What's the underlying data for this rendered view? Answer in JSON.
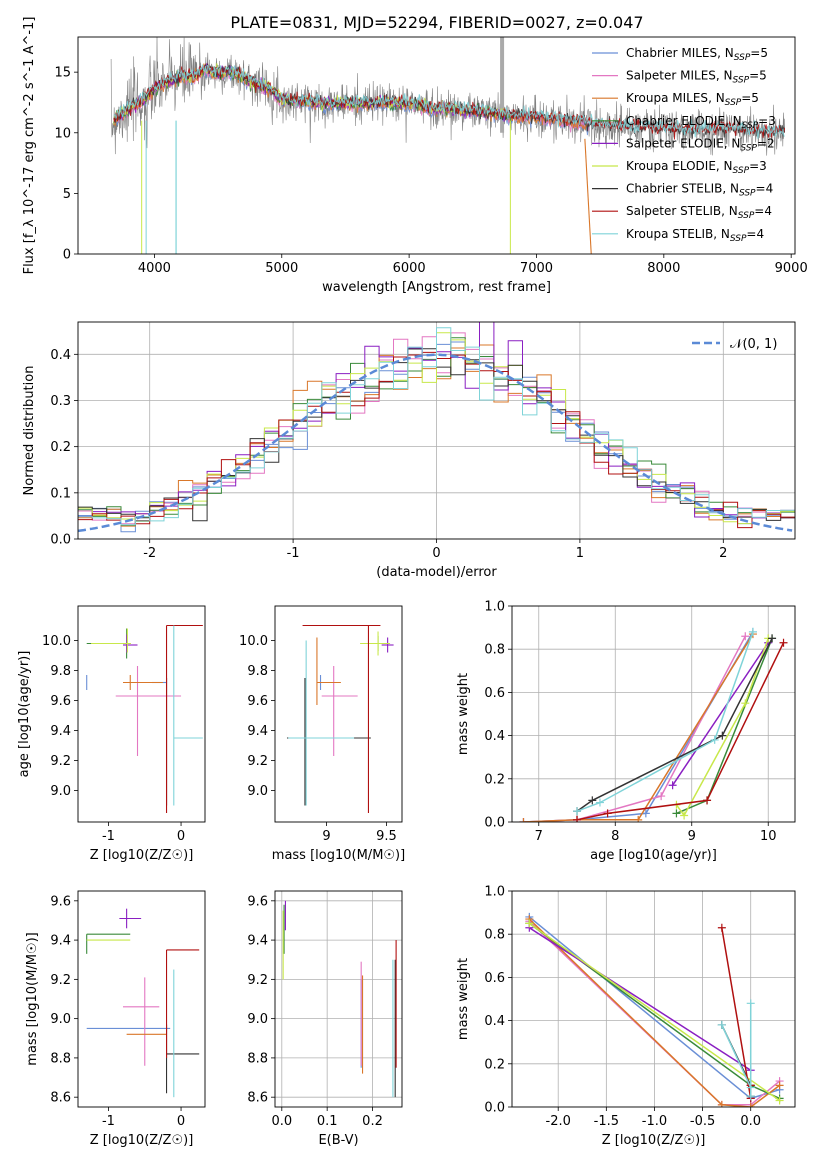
{
  "figure": {
    "title": "PLATE=0831, MJD=52294, FIBERID=0027, z=0.047"
  },
  "chart_data": [
    {
      "type": "line",
      "name": "spectrum",
      "xlabel": "wavelength [Angstrom, rest frame]",
      "ylabel": "Flux [f_λ 10^-17 erg cm^-2 s^-1 A^-1]",
      "xlim": [
        3400,
        9030
      ],
      "ylim": [
        0,
        17.9
      ],
      "xticks": [
        4000,
        5000,
        6000,
        7000,
        8000,
        9000
      ],
      "yticks": [
        0,
        5,
        10,
        15
      ],
      "data_color": "#808080",
      "continuum": {
        "x": [
          3650,
          3700,
          3800,
          3900,
          4000,
          4100,
          4200,
          4300,
          4400,
          4500,
          4600,
          4700,
          4800,
          4900,
          5000,
          5200,
          5400,
          5600,
          5800,
          6000,
          6200,
          6400,
          6600,
          6800,
          7000,
          7200,
          7400,
          7600,
          7800,
          8000,
          8200,
          8400,
          8600,
          8800,
          8950
        ],
        "y": [
          10.5,
          11.2,
          12.0,
          12.6,
          13.6,
          14.2,
          14.6,
          14.6,
          15.2,
          14.9,
          15.0,
          14.6,
          14.0,
          13.7,
          12.7,
          12.6,
          12.4,
          12.4,
          12.5,
          12.4,
          12.0,
          11.9,
          11.7,
          11.4,
          11.3,
          11.0,
          10.8,
          10.5,
          10.4,
          10.3,
          10.2,
          10.3,
          10.2,
          10.0,
          10.0
        ]
      },
      "models": [
        {
          "name": "Chabrier MILES",
          "nssp": "5",
          "color": "#6a8fd6",
          "xmax": 7420
        },
        {
          "name": "Salpeter MILES",
          "nssp": "5",
          "color": "#e377c2",
          "xmax": 7420
        },
        {
          "name": "Kroupa MILES",
          "nssp": "5",
          "color": "#d9772a",
          "xmax": 7420
        },
        {
          "name": "Chabrier ELODIE",
          "nssp": "3",
          "color": "#3a8a3a",
          "xmax": 6800
        },
        {
          "name": "Salpeter ELODIE",
          "nssp": "2",
          "color": "#8a1fc2",
          "xmax": 6800
        },
        {
          "name": "Kroupa ELODIE",
          "nssp": "3",
          "color": "#c8e84a",
          "xmax": 6800
        },
        {
          "name": "Chabrier STELIB",
          "nssp": "4",
          "color": "#333333",
          "xmax": 8950
        },
        {
          "name": "Salpeter STELIB",
          "nssp": "4",
          "color": "#b01010",
          "xmax": 8950
        },
        {
          "name": "Kroupa STELIB",
          "nssp": "4",
          "color": "#7fd3d8",
          "xmax": 8950
        }
      ],
      "legend_position": "upper-right"
    },
    {
      "type": "histogram",
      "name": "residuals",
      "xlabel": "(data-model)/error",
      "ylabel": "Normed distribution",
      "xlim": [
        -2.5,
        2.5
      ],
      "ylim": [
        0,
        0.47
      ],
      "xticks": [
        -2,
        -1,
        0,
        1,
        2
      ],
      "yticks": [
        0.0,
        0.1,
        0.2,
        0.3,
        0.4
      ],
      "grid": true,
      "bin_width": 0.1,
      "reference_curve": {
        "label": "𝒩(0, 1)",
        "mean": 0,
        "sigma": 1,
        "color": "#5b8ad6",
        "style": "dashed"
      },
      "legend_position": "upper-right"
    },
    {
      "type": "errorbar",
      "name": "age-vs-Z",
      "xlabel": "Z [log10(Z/Z☉)]",
      "ylabel": "age  [log10(age/yr)]",
      "xlim": [
        -1.42,
        0.33
      ],
      "ylim": [
        8.79,
        10.23
      ],
      "xticks": [
        -1,
        0
      ],
      "yticks": [
        9.0,
        9.2,
        9.4,
        9.6,
        9.8,
        10.0
      ],
      "points": [
        {
          "color": "#6a8fd6",
          "x": -1.3,
          "xlo": -0.9,
          "xhi": 1.1,
          "y": 9.72,
          "ylo": 0.05,
          "yhi": 0.05
        },
        {
          "color": "#e377c2",
          "x": -0.6,
          "xlo": 0.3,
          "xhi": 0.6,
          "y": 9.63,
          "ylo": 0.4,
          "yhi": 0.2
        },
        {
          "color": "#d9772a",
          "x": -0.7,
          "xlo": 0.1,
          "xhi": 0.45,
          "y": 9.72,
          "ylo": 0.05,
          "yhi": 0.05
        },
        {
          "color": "#3a8a3a",
          "x": -0.75,
          "xlo": 0.55,
          "xhi": 0.05,
          "y": 9.98,
          "ylo": 0.1,
          "yhi": 0.1
        },
        {
          "color": "#8a1fc2",
          "x": -0.75,
          "xlo": 0.05,
          "xhi": 0.15,
          "y": 9.97,
          "ylo": 0.05,
          "yhi": 0.07
        },
        {
          "color": "#c8e84a",
          "x": -0.74,
          "xlo": 0.5,
          "xhi": 0.05,
          "y": 9.98,
          "ylo": 0.06,
          "yhi": 0.1
        },
        {
          "color": "#333333",
          "x": -0.2,
          "xlo": 0.0,
          "xhi": 0.0,
          "y": 9.35,
          "ylo": 0.45,
          "yhi": 0.4
        },
        {
          "color": "#b01010",
          "x": -0.2,
          "xlo": 0.0,
          "xhi": 0.5,
          "y": 10.1,
          "ylo": 1.25,
          "yhi": 0.0
        },
        {
          "color": "#7fd3d8",
          "x": -0.1,
          "xlo": 0.0,
          "xhi": 0.4,
          "y": 9.35,
          "ylo": 0.45,
          "yhi": 0.75
        }
      ]
    },
    {
      "type": "errorbar",
      "name": "age-vs-mass",
      "xlabel": "mass [log10(M/M☉)]",
      "ylabel": "",
      "xlim": [
        8.57,
        9.63
      ],
      "ylim": [
        8.79,
        10.23
      ],
      "xticks": [
        9.0,
        9.5
      ],
      "yticks": [
        9.0,
        9.2,
        9.4,
        9.6,
        9.8,
        10.0
      ],
      "points": [
        {
          "color": "#6a8fd6",
          "x": 8.95,
          "xlo": 0.0,
          "xhi": 0.0,
          "y": 9.72,
          "ylo": 0.05,
          "yhi": 0.05
        },
        {
          "color": "#e377c2",
          "x": 9.06,
          "xlo": 0.1,
          "xhi": 0.2,
          "y": 9.63,
          "ylo": 0.4,
          "yhi": 0.2
        },
        {
          "color": "#d9772a",
          "x": 8.92,
          "xlo": 0.0,
          "xhi": 0.2,
          "y": 9.72,
          "ylo": 0.15,
          "yhi": 0.3
        },
        {
          "color": "#3a8a3a",
          "x": 9.43,
          "xlo": 0.1,
          "xhi": 0.1,
          "y": 9.98,
          "ylo": 0.05,
          "yhi": 0.05
        },
        {
          "color": "#8a1fc2",
          "x": 9.51,
          "xlo": 0.05,
          "xhi": 0.05,
          "y": 9.97,
          "ylo": 0.05,
          "yhi": 0.05
        },
        {
          "color": "#c8e84a",
          "x": 9.43,
          "xlo": 0.15,
          "xhi": 0.1,
          "y": 9.98,
          "ylo": 0.08,
          "yhi": 0.08
        },
        {
          "color": "#333333",
          "x": 8.82,
          "xlo": 0.15,
          "xhi": 0.55,
          "y": 9.35,
          "ylo": 0.45,
          "yhi": 0.4
        },
        {
          "color": "#b01010",
          "x": 9.35,
          "xlo": 0.55,
          "xhi": 0.1,
          "y": 10.1,
          "ylo": 1.25,
          "yhi": 0.0
        },
        {
          "color": "#7fd3d8",
          "x": 8.83,
          "xlo": 0.15,
          "xhi": 0.4,
          "y": 9.35,
          "ylo": 0.45,
          "yhi": 0.65
        }
      ]
    },
    {
      "type": "line",
      "name": "mass-weight-vs-age",
      "xlabel": "age  [log10(age/yr)]",
      "ylabel": "mass weight",
      "xlim": [
        6.65,
        10.35
      ],
      "ylim": [
        0,
        1.0
      ],
      "xticks": [
        7,
        8,
        9,
        10
      ],
      "yticks": [
        0.0,
        0.2,
        0.4,
        0.6,
        0.8,
        1.0
      ],
      "grid": true,
      "series": [
        {
          "color": "#6a8fd6",
          "x": [
            6.8,
            7.5,
            8.4,
            9.8
          ],
          "y": [
            0.0,
            0.01,
            0.04,
            0.88
          ]
        },
        {
          "color": "#e377c2",
          "x": [
            6.8,
            7.5,
            8.6,
            9.7
          ],
          "y": [
            0.0,
            0.01,
            0.12,
            0.86
          ]
        },
        {
          "color": "#d9772a",
          "x": [
            6.8,
            7.5,
            8.3,
            9.8
          ],
          "y": [
            0.0,
            0.01,
            0.01,
            0.87
          ]
        },
        {
          "color": "#3a8a3a",
          "x": [
            8.8,
            9.2,
            10.05
          ],
          "y": [
            0.04,
            0.1,
            0.85
          ]
        },
        {
          "color": "#8a1fc2",
          "x": [
            8.75,
            10.0
          ],
          "y": [
            0.17,
            0.83
          ]
        },
        {
          "color": "#c8e84a",
          "x": [
            8.8,
            8.9,
            9.7,
            10.0
          ],
          "y": [
            0.08,
            0.03,
            0.55,
            0.85
          ]
        },
        {
          "color": "#333333",
          "x": [
            7.5,
            7.7,
            9.4,
            10.05
          ],
          "y": [
            0.05,
            0.1,
            0.4,
            0.85
          ]
        },
        {
          "color": "#b01010",
          "x": [
            7.5,
            7.9,
            9.2,
            10.2
          ],
          "y": [
            0.01,
            0.04,
            0.1,
            0.83
          ]
        },
        {
          "color": "#7fd3d8",
          "x": [
            7.5,
            7.8,
            9.3,
            9.8
          ],
          "y": [
            0.05,
            0.09,
            0.38,
            0.88
          ]
        }
      ]
    },
    {
      "type": "errorbar",
      "name": "mass-vs-Z",
      "xlabel": "Z [log10(Z/Z☉)]",
      "ylabel": "mass [log10(M/M☉)]",
      "xlim": [
        -1.42,
        0.33
      ],
      "ylim": [
        8.55,
        9.65
      ],
      "xticks": [
        -1,
        0
      ],
      "yticks": [
        8.6,
        8.8,
        9.0,
        9.2,
        9.4,
        9.6
      ],
      "points": [
        {
          "color": "#6a8fd6",
          "x": -0.7,
          "xlo": 0.6,
          "xhi": 0.55,
          "y": 8.95,
          "ylo": 0.0,
          "yhi": 0.0
        },
        {
          "color": "#e377c2",
          "x": -0.5,
          "xlo": 0.3,
          "xhi": 0.2,
          "y": 9.06,
          "ylo": 0.3,
          "yhi": 0.15
        },
        {
          "color": "#d9772a",
          "x": -0.5,
          "xlo": 0.25,
          "xhi": 0.3,
          "y": 8.92,
          "ylo": 0.0,
          "yhi": 0.0
        },
        {
          "color": "#3a8a3a",
          "x": -1.3,
          "xlo": 0.0,
          "xhi": 0.6,
          "y": 9.43,
          "ylo": 0.1,
          "yhi": 0.0
        },
        {
          "color": "#8a1fc2",
          "x": -0.75,
          "xlo": 0.1,
          "xhi": 0.2,
          "y": 9.51,
          "ylo": 0.05,
          "yhi": 0.05
        },
        {
          "color": "#c8e84a",
          "x": -1.3,
          "xlo": 0.0,
          "xhi": 0.6,
          "y": 9.4,
          "ylo": 0.0,
          "yhi": 0.0
        },
        {
          "color": "#333333",
          "x": -0.2,
          "xlo": 0.0,
          "xhi": 0.45,
          "y": 8.82,
          "ylo": 0.2,
          "yhi": 0.15
        },
        {
          "color": "#b01010",
          "x": -0.2,
          "xlo": 0.0,
          "xhi": 0.45,
          "y": 9.35,
          "ylo": 0.55,
          "yhi": 0.0
        },
        {
          "color": "#7fd3d8",
          "x": -0.1,
          "xlo": 0.0,
          "xhi": 0.0,
          "y": 8.83,
          "ylo": 0.23,
          "yhi": 0.42
        }
      ]
    },
    {
      "type": "errorbar",
      "name": "mass-vs-ebv",
      "xlabel": "E(B-V)",
      "ylabel": "",
      "xlim": [
        -0.015,
        0.265
      ],
      "ylim": [
        8.55,
        9.65
      ],
      "xticks": [
        0.0,
        0.1,
        0.2
      ],
      "yticks": [
        8.6,
        8.8,
        9.0,
        9.2,
        9.4,
        9.6
      ],
      "grid": true,
      "points": [
        {
          "color": "#6a8fd6",
          "x": 0.175,
          "xlo": 0,
          "xhi": 0,
          "y": 8.95,
          "ylo": 0.2,
          "yhi": 0.25
        },
        {
          "color": "#e377c2",
          "x": 0.175,
          "xlo": 0,
          "xhi": 0,
          "y": 9.06,
          "ylo": 0.3,
          "yhi": 0.23
        },
        {
          "color": "#d9772a",
          "x": 0.178,
          "xlo": 0,
          "xhi": 0,
          "y": 8.92,
          "ylo": 0.2,
          "yhi": 0.3
        },
        {
          "color": "#3a8a3a",
          "x": 0.005,
          "xlo": 0,
          "xhi": 0,
          "y": 9.43,
          "ylo": 0.1,
          "yhi": 0.15
        },
        {
          "color": "#8a1fc2",
          "x": 0.008,
          "xlo": 0,
          "xhi": 0,
          "y": 9.5,
          "ylo": 0.05,
          "yhi": 0.1
        },
        {
          "color": "#c8e84a",
          "x": 0.003,
          "xlo": 0,
          "xhi": 0,
          "y": 9.4,
          "ylo": 0.2,
          "yhi": 0.15
        },
        {
          "color": "#333333",
          "x": 0.25,
          "xlo": 0,
          "xhi": 0,
          "y": 9.0,
          "ylo": 0.4,
          "yhi": 0.3
        },
        {
          "color": "#b01010",
          "x": 0.252,
          "xlo": 0,
          "xhi": 0,
          "y": 9.1,
          "ylo": 0.35,
          "yhi": 0.3
        },
        {
          "color": "#7fd3d8",
          "x": 0.245,
          "xlo": 0,
          "xhi": 0,
          "y": 8.8,
          "ylo": 0.2,
          "yhi": 0.5
        }
      ]
    },
    {
      "type": "line",
      "name": "mass-weight-vs-Z",
      "xlabel": "Z [log10(Z/Z☉)]",
      "ylabel": "mass weight",
      "xlim": [
        -2.48,
        0.46
      ],
      "ylim": [
        0,
        1.0
      ],
      "xticks": [
        -2.0,
        -1.5,
        -1.0,
        -0.5,
        0.0
      ],
      "yticks": [
        0.0,
        0.2,
        0.4,
        0.6,
        0.8,
        1.0
      ],
      "grid": true,
      "series": [
        {
          "color": "#6a8fd6",
          "x": [
            -2.3,
            0.0,
            0.3
          ],
          "y": [
            0.88,
            0.04,
            0.08
          ]
        },
        {
          "color": "#e377c2",
          "x": [
            -2.3,
            -0.3,
            0.0,
            0.3
          ],
          "y": [
            0.86,
            0.01,
            0.01,
            0.12
          ]
        },
        {
          "color": "#d9772a",
          "x": [
            -2.3,
            -0.3,
            0.0,
            0.3
          ],
          "y": [
            0.87,
            0.01,
            0.0,
            0.1
          ]
        },
        {
          "color": "#3a8a3a",
          "x": [
            -2.3,
            0.0,
            0.3
          ],
          "y": [
            0.85,
            0.1,
            0.04
          ]
        },
        {
          "color": "#8a1fc2",
          "x": [
            -2.3,
            0.0
          ],
          "y": [
            0.83,
            0.17
          ]
        },
        {
          "color": "#c8e84a",
          "x": [
            -2.3,
            0.3
          ],
          "y": [
            0.85,
            0.03
          ]
        },
        {
          "color": "#333333",
          "x": [
            -0.3,
            0.0,
            0.0
          ],
          "y": [
            0.38,
            0.1,
            0.05
          ]
        },
        {
          "color": "#b01010",
          "x": [
            -0.3,
            0.0,
            0.0
          ],
          "y": [
            0.83,
            0.04,
            0.1
          ]
        },
        {
          "color": "#7fd3d8",
          "x": [
            -0.3,
            0.0,
            0.0,
            0.0
          ],
          "y": [
            0.38,
            0.09,
            0.05,
            0.48
          ]
        }
      ]
    }
  ]
}
